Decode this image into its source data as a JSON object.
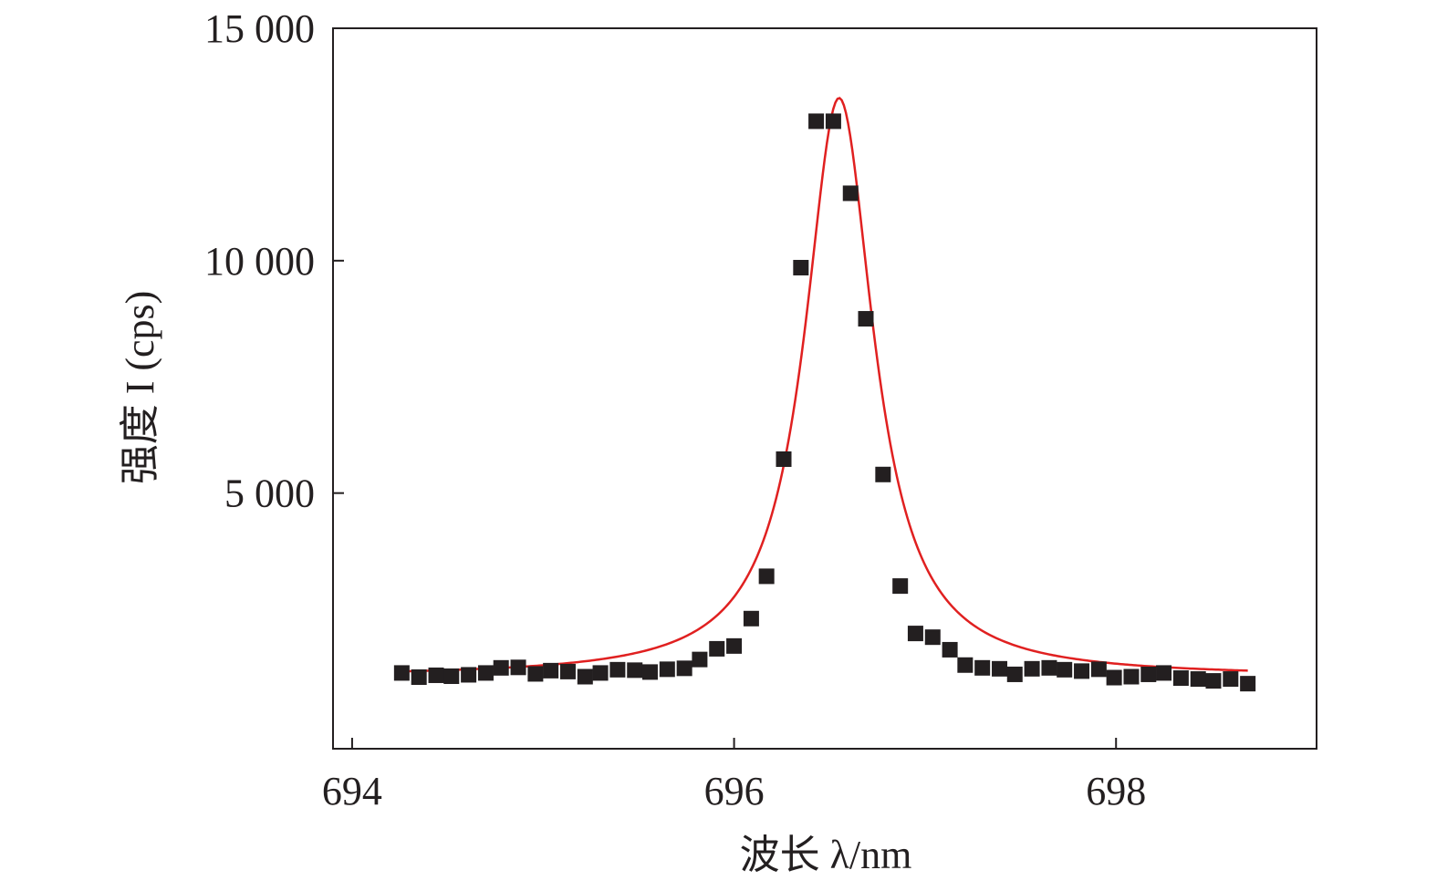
{
  "chart_data": {
    "type": "scatter",
    "xlabel": "波长 λ/nm",
    "ylabel": "强度 I (cps)",
    "xlim": [
      693.9,
      699.05
    ],
    "ylim": [
      -500,
      15000
    ],
    "x_ticks": [
      694,
      696,
      698
    ],
    "x_tick_labels": [
      "694",
      "696",
      "698"
    ],
    "y_ticks": [
      5000,
      10000,
      15000
    ],
    "y_tick_labels": [
      "5 000",
      "10 000",
      "15 000"
    ],
    "grid": false,
    "legend": "none",
    "colors": {
      "points": "#231f20",
      "fit": "#e02020",
      "axes": "#231f20"
    },
    "series": [
      {
        "kind": "points",
        "x": [
          694.26,
          694.35,
          694.44,
          694.52,
          694.61,
          694.7,
          694.78,
          694.87,
          694.96,
          695.04,
          695.13,
          695.22,
          695.3,
          695.39,
          695.48,
          695.56,
          695.65,
          695.74,
          695.82,
          695.91,
          696.0,
          696.09,
          696.17,
          696.26,
          696.35,
          696.43,
          696.52,
          696.61,
          696.69,
          696.78,
          696.87,
          696.95,
          697.04,
          697.13,
          697.21,
          697.3,
          697.39,
          697.47,
          697.56,
          697.65,
          697.73,
          697.82,
          697.91,
          697.99,
          698.08,
          698.17,
          698.25,
          698.34,
          698.43,
          698.51,
          698.6,
          698.69
        ],
        "y": [
          1130,
          1040,
          1080,
          1060,
          1090,
          1130,
          1240,
          1250,
          1110,
          1180,
          1160,
          1050,
          1130,
          1200,
          1190,
          1150,
          1210,
          1230,
          1420,
          1650,
          1710,
          2300,
          3210,
          5730,
          9850,
          13000,
          13000,
          11450,
          8750,
          5400,
          3000,
          1980,
          1900,
          1630,
          1300,
          1240,
          1220,
          1100,
          1220,
          1240,
          1200,
          1170,
          1210,
          1030,
          1050,
          1100,
          1130,
          1020,
          1000,
          960,
          1000,
          900
        ]
      },
      {
        "kind": "fit",
        "model": "lorentzian",
        "baseline_start": 1050,
        "baseline_end": 1050,
        "center": 696.55,
        "amplitude": 12450,
        "fwhm": 0.44
      }
    ]
  }
}
